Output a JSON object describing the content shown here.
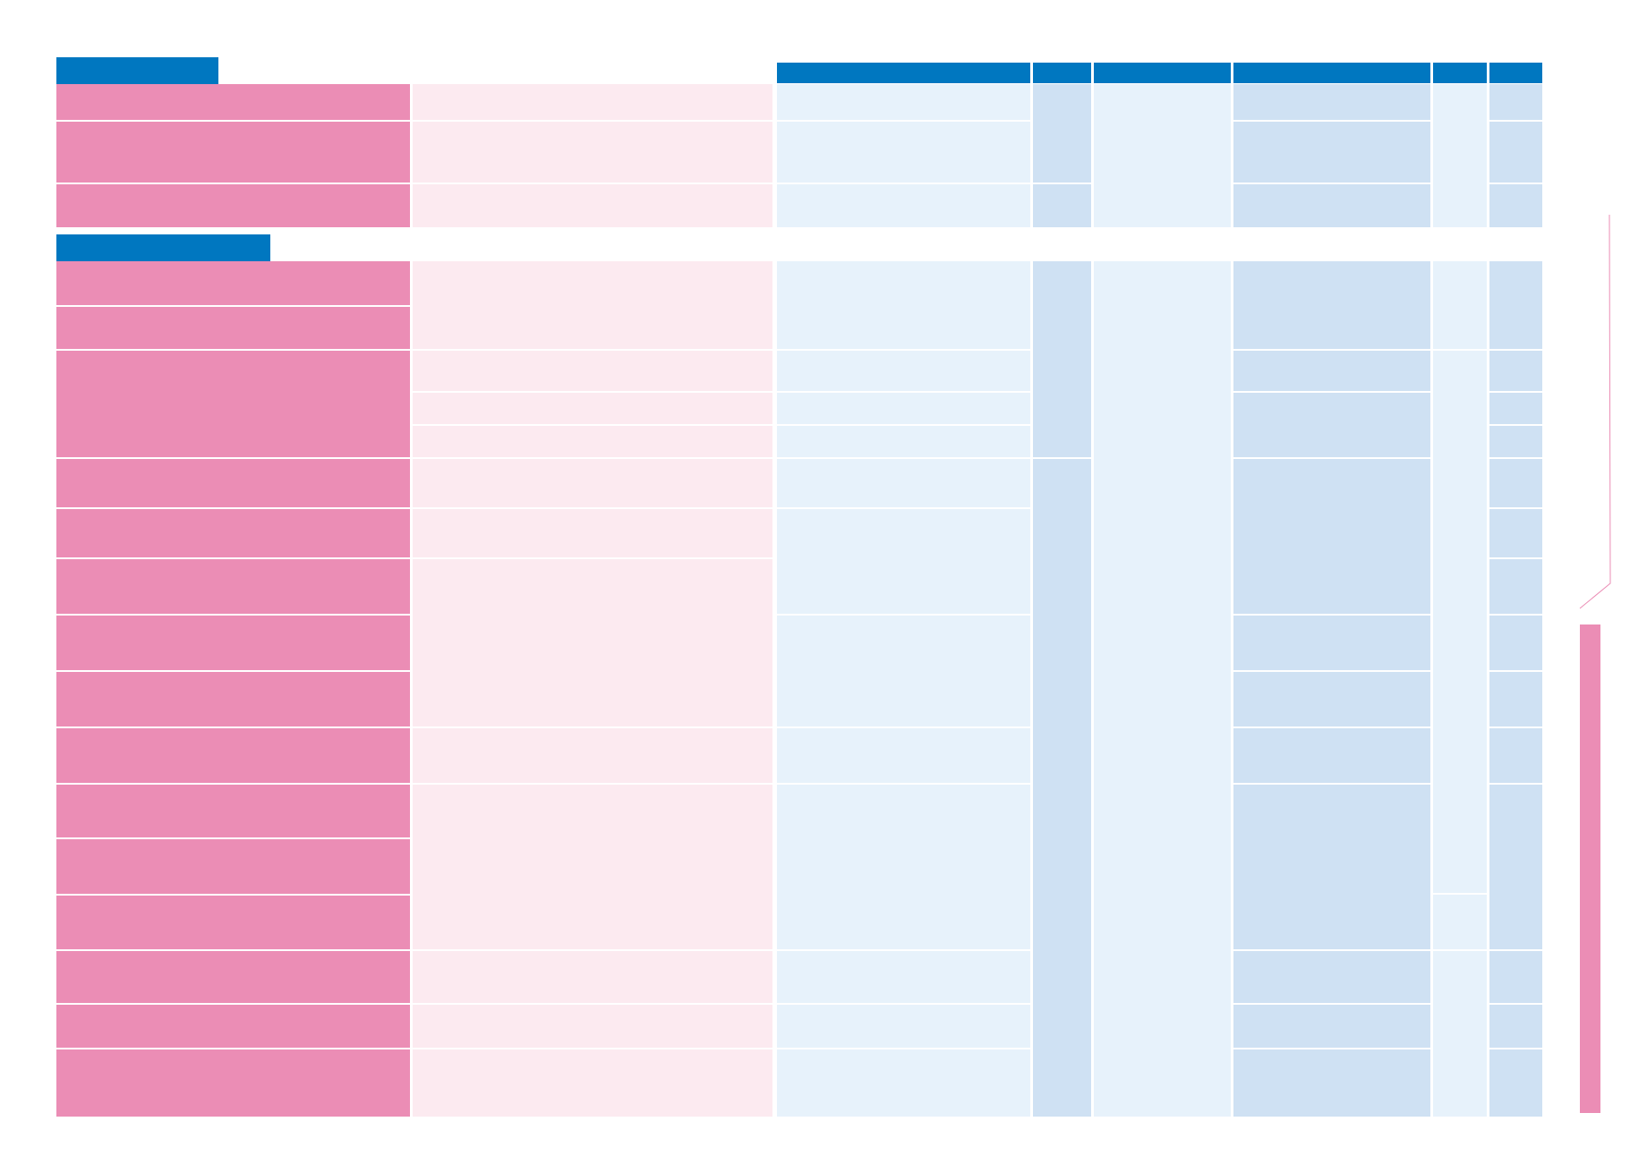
{
  "colors": {
    "header_blue": "#0077c0",
    "row_pink": "#eb8db5",
    "cell_light_pink": "#fceaf0",
    "cell_light_blue": "#e7f2fb",
    "cell_mid_blue": "#cfe1f3",
    "background": "#ffffff"
  },
  "sections": [
    {
      "tab_label": "",
      "header_labels": [
        "",
        "",
        "",
        "",
        "",
        ""
      ],
      "rows": 3
    },
    {
      "tab_label": "",
      "rows": 16
    }
  ]
}
